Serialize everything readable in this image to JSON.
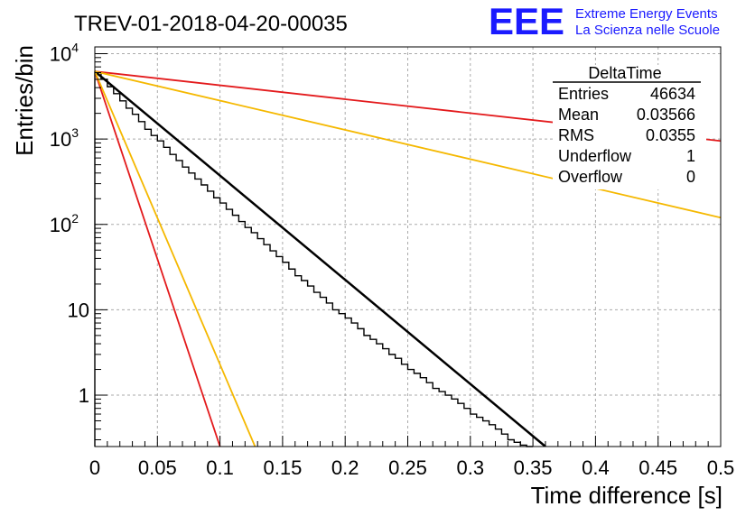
{
  "title": "TREV-01-2018-04-20-00035",
  "logo": {
    "mark": "EEE",
    "line1": "Extreme Energy Events",
    "line2": "La Scienza nelle Scuole",
    "color": "#1a1aff"
  },
  "stats_box": {
    "title": "DeltaTime",
    "rows": [
      {
        "label": "Entries",
        "value": "46634"
      },
      {
        "label": "Mean",
        "value": "0.03566"
      },
      {
        "label": "RMS",
        "value": "0.0355"
      },
      {
        "label": "Underflow",
        "value": "1"
      },
      {
        "label": "Overflow",
        "value": "0"
      }
    ]
  },
  "chart_data": {
    "type": "histogram",
    "xlabel": "Time difference [s]",
    "ylabel": "Entries/bin",
    "xlim": [
      0,
      0.5
    ],
    "ylim": [
      0.25,
      12000
    ],
    "yscale": "log",
    "grid": true,
    "x_ticks": [
      {
        "v": 0,
        "label": "0"
      },
      {
        "v": 0.05,
        "label": "0.05"
      },
      {
        "v": 0.1,
        "label": "0.1"
      },
      {
        "v": 0.15,
        "label": "0.15"
      },
      {
        "v": 0.2,
        "label": "0.2"
      },
      {
        "v": 0.25,
        "label": "0.25"
      },
      {
        "v": 0.3,
        "label": "0.3"
      },
      {
        "v": 0.35,
        "label": "0.35"
      },
      {
        "v": 0.4,
        "label": "0.4"
      },
      {
        "v": 0.45,
        "label": "0.45"
      },
      {
        "v": 0.5,
        "label": "0.5"
      }
    ],
    "y_ticks": [
      {
        "v": 1,
        "base": "1",
        "exp": ""
      },
      {
        "v": 10,
        "base": "10",
        "exp": ""
      },
      {
        "v": 100,
        "base": "10",
        "exp": "2"
      },
      {
        "v": 1000,
        "base": "10",
        "exp": "3"
      },
      {
        "v": 10000,
        "base": "10",
        "exp": "4"
      }
    ],
    "histogram": {
      "bin_width": 0.005,
      "color": "#000000",
      "bins": [
        {
          "x": 0.0,
          "y": 6100
        },
        {
          "x": 0.005,
          "y": 5000
        },
        {
          "x": 0.01,
          "y": 4100
        },
        {
          "x": 0.015,
          "y": 3400
        },
        {
          "x": 0.02,
          "y": 2800
        },
        {
          "x": 0.025,
          "y": 2300
        },
        {
          "x": 0.03,
          "y": 1950
        },
        {
          "x": 0.035,
          "y": 1600
        },
        {
          "x": 0.04,
          "y": 1300
        },
        {
          "x": 0.045,
          "y": 1100
        },
        {
          "x": 0.05,
          "y": 950
        },
        {
          "x": 0.055,
          "y": 800
        },
        {
          "x": 0.06,
          "y": 660
        },
        {
          "x": 0.065,
          "y": 560
        },
        {
          "x": 0.07,
          "y": 470
        },
        {
          "x": 0.075,
          "y": 400
        },
        {
          "x": 0.08,
          "y": 340
        },
        {
          "x": 0.085,
          "y": 290
        },
        {
          "x": 0.09,
          "y": 245
        },
        {
          "x": 0.095,
          "y": 205
        },
        {
          "x": 0.1,
          "y": 178
        },
        {
          "x": 0.105,
          "y": 150
        },
        {
          "x": 0.11,
          "y": 128
        },
        {
          "x": 0.115,
          "y": 108
        },
        {
          "x": 0.12,
          "y": 92
        },
        {
          "x": 0.125,
          "y": 80
        },
        {
          "x": 0.13,
          "y": 68
        },
        {
          "x": 0.135,
          "y": 58
        },
        {
          "x": 0.14,
          "y": 49
        },
        {
          "x": 0.145,
          "y": 42
        },
        {
          "x": 0.15,
          "y": 36
        },
        {
          "x": 0.155,
          "y": 30
        },
        {
          "x": 0.16,
          "y": 25
        },
        {
          "x": 0.165,
          "y": 22
        },
        {
          "x": 0.17,
          "y": 19
        },
        {
          "x": 0.175,
          "y": 16
        },
        {
          "x": 0.18,
          "y": 14
        },
        {
          "x": 0.185,
          "y": 12
        },
        {
          "x": 0.19,
          "y": 10
        },
        {
          "x": 0.195,
          "y": 9
        },
        {
          "x": 0.2,
          "y": 8
        },
        {
          "x": 0.205,
          "y": 7
        },
        {
          "x": 0.21,
          "y": 6
        },
        {
          "x": 0.215,
          "y": 5
        },
        {
          "x": 0.22,
          "y": 4.5
        },
        {
          "x": 0.225,
          "y": 4
        },
        {
          "x": 0.23,
          "y": 3.5
        },
        {
          "x": 0.235,
          "y": 3
        },
        {
          "x": 0.24,
          "y": 2.7
        },
        {
          "x": 0.245,
          "y": 2.3
        },
        {
          "x": 0.25,
          "y": 2
        },
        {
          "x": 0.255,
          "y": 1.8
        },
        {
          "x": 0.26,
          "y": 1.6
        },
        {
          "x": 0.265,
          "y": 1.4
        },
        {
          "x": 0.27,
          "y": 1.2
        },
        {
          "x": 0.275,
          "y": 1.1
        },
        {
          "x": 0.28,
          "y": 1
        },
        {
          "x": 0.285,
          "y": 0.9
        },
        {
          "x": 0.29,
          "y": 0.8
        },
        {
          "x": 0.295,
          "y": 0.7
        },
        {
          "x": 0.3,
          "y": 0.6
        },
        {
          "x": 0.305,
          "y": 0.55
        },
        {
          "x": 0.31,
          "y": 0.5
        },
        {
          "x": 0.315,
          "y": 0.45
        },
        {
          "x": 0.32,
          "y": 0.4
        },
        {
          "x": 0.325,
          "y": 0.35
        },
        {
          "x": 0.33,
          "y": 0.3
        },
        {
          "x": 0.335,
          "y": 0.28
        },
        {
          "x": 0.34,
          "y": 0.26
        },
        {
          "x": 0.345,
          "y": 0.25
        }
      ]
    },
    "fit_lines": [
      {
        "color": "#000000",
        "x": [
          0,
          0.36
        ],
        "y": [
          6200,
          0.25
        ],
        "width": 2.5
      },
      {
        "color": "#e31a1c",
        "x": [
          0,
          0.1
        ],
        "y": [
          6200,
          0.25
        ],
        "width": 1.8
      },
      {
        "color": "#f5b800",
        "x": [
          0,
          0.128
        ],
        "y": [
          6200,
          0.25
        ],
        "width": 1.8
      },
      {
        "color": "#e31a1c",
        "x": [
          0,
          0.5
        ],
        "y": [
          6200,
          950
        ],
        "width": 1.8
      },
      {
        "color": "#f5b800",
        "x": [
          0,
          0.5
        ],
        "y": [
          6200,
          120
        ],
        "width": 1.8
      }
    ]
  }
}
